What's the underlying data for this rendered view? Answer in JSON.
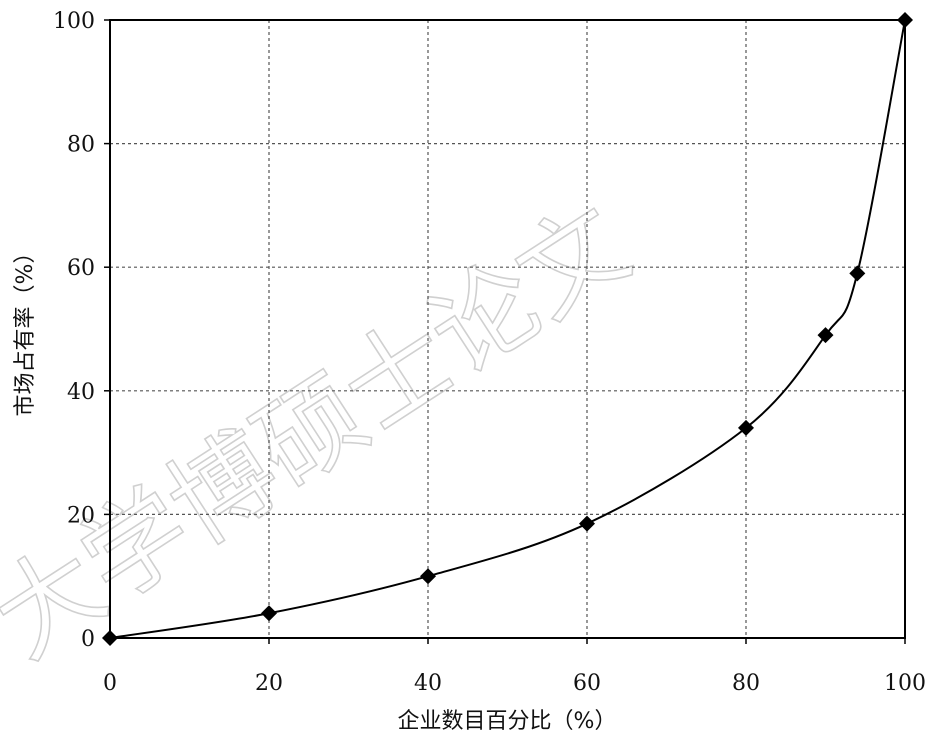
{
  "chart_data": {
    "type": "line",
    "title": "",
    "xlabel": "企业数目百分比（%）",
    "ylabel": "市场占有率（%）",
    "xlim": [
      0,
      100
    ],
    "ylim": [
      0,
      100
    ],
    "x_ticks": [
      0,
      20,
      40,
      60,
      80,
      100
    ],
    "y_ticks": [
      0,
      20,
      40,
      60,
      80,
      100
    ],
    "grid": true,
    "legend": "none",
    "marker": "diamond",
    "line_color": "#000000",
    "series": [
      {
        "x": [
          0,
          20,
          40,
          60,
          80,
          90,
          94,
          100
        ],
        "y": [
          0,
          4,
          10,
          18.5,
          34,
          49,
          59,
          100
        ]
      }
    ]
  },
  "watermark": {
    "text": "大学博硕士论文"
  }
}
